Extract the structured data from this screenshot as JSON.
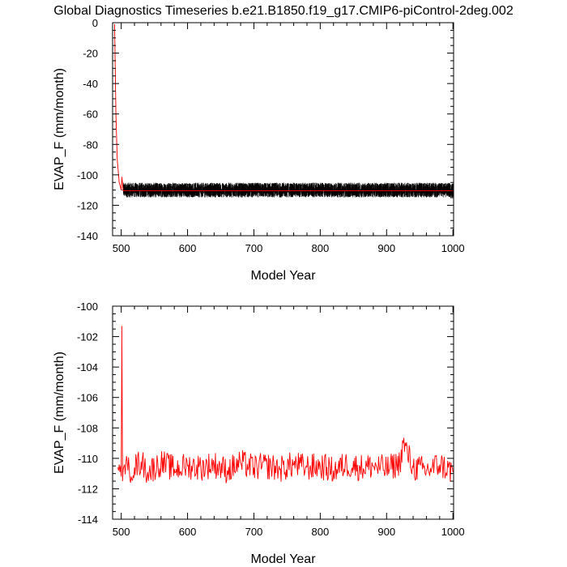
{
  "figure_title": "Global Diagnostics Timeseries b.e21.B1850.f19_g17.CMIP6-piControl-2deg.002",
  "chart_data": [
    {
      "type": "line",
      "xlabel": "Model Year",
      "ylabel": "EVAP_F (mm/month)",
      "xlim": [
        487,
        1001
      ],
      "ylim": [
        -140,
        0
      ],
      "x_ticks": [
        500,
        600,
        700,
        800,
        900,
        1000
      ],
      "y_ticks": [
        0,
        -20,
        -40,
        -60,
        -80,
        -100,
        -120,
        -140
      ],
      "grid": false,
      "series": [
        {
          "color": "#000000",
          "description": "monthly values",
          "x": [
            490,
            491,
            492,
            494,
            497,
            500,
            503,
            1000
          ],
          "y": [
            -1,
            -30,
            -60,
            -90,
            -105,
            -110,
            -110,
            -110
          ],
          "noise_amplitude": 6
        },
        {
          "color": "#ff0000",
          "description": "annual mean",
          "x": [
            490,
            491,
            492,
            494,
            497,
            500,
            501,
            503,
            1000
          ],
          "y": [
            -1,
            -30,
            -60,
            -90,
            -105,
            -110,
            -101.3,
            -110.5,
            -110.5
          ]
        }
      ]
    },
    {
      "type": "line",
      "xlabel": "Model Year",
      "ylabel": "EVAP_F (mm/month)",
      "xlim": [
        487,
        1001
      ],
      "ylim": [
        -114,
        -100
      ],
      "x_ticks": [
        500,
        600,
        700,
        800,
        900,
        1000
      ],
      "y_ticks": [
        -100,
        -102,
        -104,
        -106,
        -108,
        -110,
        -112,
        -114
      ],
      "grid": false,
      "series": [
        {
          "color": "#ff0000",
          "description": "annual mean",
          "x": [
            495,
            496,
            497,
            498,
            499,
            500,
            501,
            502,
            503,
            505,
            510,
            520,
            530,
            540,
            560,
            580,
            600,
            620,
            640,
            660,
            680,
            700,
            720,
            740,
            760,
            780,
            800,
            820,
            840,
            860,
            880,
            900,
            920,
            925,
            940,
            960,
            980,
            1000
          ],
          "y": [
            -110.6,
            -110.8,
            -110.4,
            -110.9,
            -110.5,
            -111.2,
            -101.3,
            -111.5,
            -110.7,
            -110.4,
            -110.8,
            -110.6,
            -110.2,
            -110.9,
            -110.3,
            -110.7,
            -110.5,
            -110.6,
            -110.4,
            -110.8,
            -110.3,
            -110.6,
            -110.5,
            -110.7,
            -110.4,
            -110.6,
            -110.5,
            -110.8,
            -110.4,
            -110.6,
            -110.5,
            -110.7,
            -110.3,
            -109.0,
            -110.6,
            -110.8,
            -110.4,
            -110.9
          ],
          "noise_amplitude": 0.9
        }
      ]
    }
  ]
}
